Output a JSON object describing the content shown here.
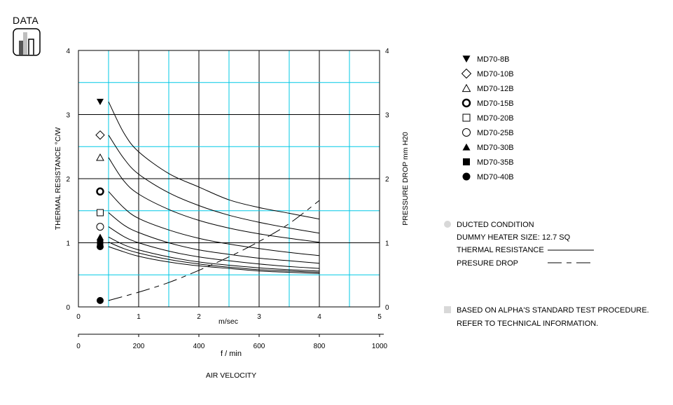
{
  "badge": {
    "label": "DATA",
    "icon": "bar-chart-icon"
  },
  "chart_data": {
    "type": "line",
    "x_unit": "m/sec",
    "x2_unit": "f / min",
    "xlabel": "AIR VELOCITY",
    "ylabel_left": "THERMAL RESISTANCE  °C/W",
    "ylabel_right": "PRESSURE DROP  mm H20",
    "xlim": [
      0,
      5
    ],
    "x2lim": [
      0,
      1000
    ],
    "ylim_left": [
      0,
      4
    ],
    "ylim_right": [
      0,
      4
    ],
    "x_ticks": [
      "0",
      "1",
      "2",
      "3",
      "4",
      "5"
    ],
    "x2_ticks": [
      "0",
      "200",
      "400",
      "600",
      "800",
      "1000"
    ],
    "y_left_ticks": [
      "0",
      "1",
      "2",
      "3",
      "4"
    ],
    "y_right_ticks": [
      "0",
      "1",
      "2",
      "3",
      "4"
    ],
    "grid": true,
    "x": [
      0.5,
      0.75,
      1,
      1.5,
      2,
      2.5,
      3,
      3.5,
      4
    ],
    "series": [
      {
        "name": "MD70-8B",
        "marker": "triangle-down-filled",
        "values": [
          3.2,
          2.72,
          2.42,
          2.08,
          1.87,
          1.67,
          1.55,
          1.46,
          1.37
        ]
      },
      {
        "name": "MD70-10B",
        "marker": "diamond-open",
        "values": [
          2.68,
          2.32,
          2.07,
          1.78,
          1.58,
          1.43,
          1.32,
          1.23,
          1.15
        ]
      },
      {
        "name": "MD70-12B",
        "marker": "triangle-up-open",
        "values": [
          2.33,
          1.97,
          1.76,
          1.52,
          1.35,
          1.23,
          1.14,
          1.07,
          1.01
        ]
      },
      {
        "name": "MD70-15B",
        "marker": "circle-bold",
        "values": [
          1.8,
          1.55,
          1.38,
          1.2,
          1.07,
          0.98,
          0.91,
          0.85,
          0.8
        ]
      },
      {
        "name": "MD70-20B",
        "marker": "square-open",
        "values": [
          1.47,
          1.28,
          1.16,
          1.0,
          0.89,
          0.82,
          0.76,
          0.72,
          0.68
        ]
      },
      {
        "name": "MD70-25B",
        "marker": "circle-open",
        "values": [
          1.25,
          1.1,
          1.0,
          0.87,
          0.78,
          0.72,
          0.67,
          0.63,
          0.6
        ]
      },
      {
        "name": "MD70-30B",
        "marker": "triangle-up-filled",
        "values": [
          1.09,
          0.97,
          0.89,
          0.78,
          0.7,
          0.65,
          0.61,
          0.58,
          0.56
        ]
      },
      {
        "name": "MD70-35B",
        "marker": "square-filled",
        "values": [
          1.01,
          0.91,
          0.84,
          0.74,
          0.67,
          0.62,
          0.58,
          0.56,
          0.54
        ]
      },
      {
        "name": "MD70-40B",
        "marker": "circle-filled",
        "values": [
          0.94,
          0.86,
          0.79,
          0.7,
          0.64,
          0.6,
          0.56,
          0.54,
          0.52
        ]
      }
    ],
    "pressure_drop": {
      "x": [
        0.5,
        1,
        1.5,
        2,
        2.5,
        3,
        3.5,
        4
      ],
      "values": [
        0.1,
        0.23,
        0.38,
        0.57,
        0.78,
        1.02,
        1.3,
        1.66
      ]
    }
  },
  "notes": {
    "condition": "DUCTED CONDITION",
    "heater": "DUMMY HEATER SIZE: 12.7 SQ",
    "thermal_resistance": "THERMAL RESISTANCE",
    "pressure_drop": "PRESURE DROP",
    "procedure_line1": "BASED ON ALPHA'S STANDARD TEST PROCEDURE.",
    "procedure_line2": "REFER TO TECHNICAL INFORMATION."
  },
  "colors": {
    "grid_cyan": "#00c8e6",
    "grid_black": "#000000",
    "bullet_gray": "#d8d8d8",
    "badge_bar_light": "#bfbfbf",
    "badge_bar_dark": "#555555"
  }
}
